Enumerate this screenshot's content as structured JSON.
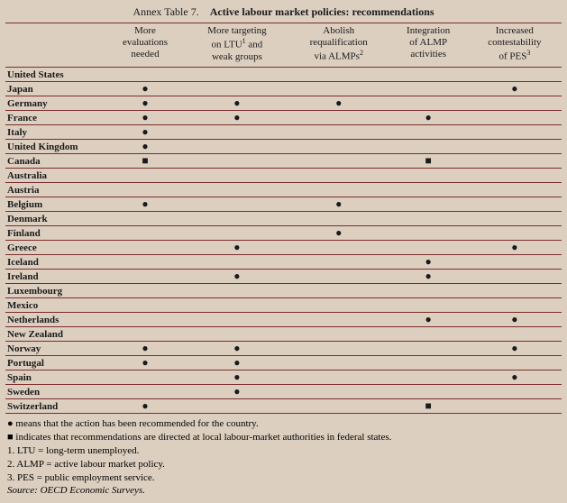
{
  "title_prefix": "Annex Table 7.",
  "title_main": "Active labour market policies: recommendations",
  "columns": [
    {
      "lines": [
        "More",
        "evaluations",
        "needed"
      ],
      "sup": ""
    },
    {
      "lines": [
        "More targeting",
        "on LTU",
        "weak groups"
      ],
      "sup": "1",
      "mid_suffix": " and"
    },
    {
      "lines": [
        "Abolish",
        "requalification",
        "via ALMPs"
      ],
      "sup": "2"
    },
    {
      "lines": [
        "Integration",
        "of ALMP",
        "activities"
      ],
      "sup": ""
    },
    {
      "lines": [
        "Increased",
        "contestability",
        "of PES"
      ],
      "sup": "3"
    }
  ],
  "marks": {
    "circle": "●",
    "square": "■",
    "none": ""
  },
  "rows": [
    {
      "country": "United States",
      "cells": [
        "",
        "",
        "",
        "",
        ""
      ]
    },
    {
      "country": "Japan",
      "cells": [
        "circle",
        "",
        "",
        "",
        "circle"
      ]
    },
    {
      "country": "Germany",
      "cells": [
        "circle",
        "circle",
        "circle",
        "",
        ""
      ]
    },
    {
      "country": "France",
      "cells": [
        "circle",
        "circle",
        "",
        "circle",
        ""
      ]
    },
    {
      "country": "Italy",
      "cells": [
        "circle",
        "",
        "",
        "",
        ""
      ]
    },
    {
      "country": "United Kingdom",
      "cells": [
        "circle",
        "",
        "",
        "",
        ""
      ]
    },
    {
      "country": "Canada",
      "cells": [
        "square",
        "",
        "",
        "square",
        ""
      ]
    },
    {
      "country": "Australia",
      "cells": [
        "",
        "",
        "",
        "",
        ""
      ]
    },
    {
      "country": "Austria",
      "cells": [
        "",
        "",
        "",
        "",
        ""
      ]
    },
    {
      "country": "Belgium",
      "cells": [
        "circle",
        "",
        "circle",
        "",
        ""
      ]
    },
    {
      "country": "Denmark",
      "cells": [
        "",
        "",
        "",
        "",
        ""
      ]
    },
    {
      "country": "Finland",
      "cells": [
        "",
        "",
        "circle",
        "",
        ""
      ]
    },
    {
      "country": "Greece",
      "cells": [
        "",
        "circle",
        "",
        "",
        "circle"
      ]
    },
    {
      "country": "Iceland",
      "cells": [
        "",
        "",
        "",
        "circle",
        ""
      ]
    },
    {
      "country": "Ireland",
      "cells": [
        "",
        "circle",
        "",
        "circle",
        ""
      ]
    },
    {
      "country": "Luxembourg",
      "cells": [
        "",
        "",
        "",
        "",
        ""
      ]
    },
    {
      "country": "Mexico",
      "cells": [
        "",
        "",
        "",
        "",
        ""
      ]
    },
    {
      "country": "Netherlands",
      "cells": [
        "",
        "",
        "",
        "circle",
        "circle"
      ]
    },
    {
      "country": "New Zealand",
      "cells": [
        "",
        "",
        "",
        "",
        ""
      ]
    },
    {
      "country": "Norway",
      "cells": [
        "circle",
        "circle",
        "",
        "",
        "circle"
      ]
    },
    {
      "country": "Portugal",
      "cells": [
        "circle",
        "circle",
        "",
        "",
        ""
      ]
    },
    {
      "country": "Spain",
      "cells": [
        "",
        "circle",
        "",
        "",
        "circle"
      ]
    },
    {
      "country": "Sweden",
      "cells": [
        "",
        "circle",
        "",
        "",
        ""
      ]
    },
    {
      "country": "Switzerland",
      "cells": [
        "circle",
        "",
        "",
        "square",
        ""
      ]
    }
  ],
  "legend": {
    "circle_text": "  means that the action has been recommended for the country.",
    "square_text": "  indicates that recommendations are directed at local labour-market authorities in federal states.",
    "note1": "1.  LTU = long-term unemployed.",
    "note2": "2.  ALMP = active labour market policy.",
    "note3": "3.  PES = public employment service.",
    "source_label": "Source:",
    "source_text": "   OECD Economic Surveys."
  },
  "colors": {
    "background": "#dccfc0",
    "rule": "#7b2d2d",
    "text": "#1a1a1a"
  }
}
